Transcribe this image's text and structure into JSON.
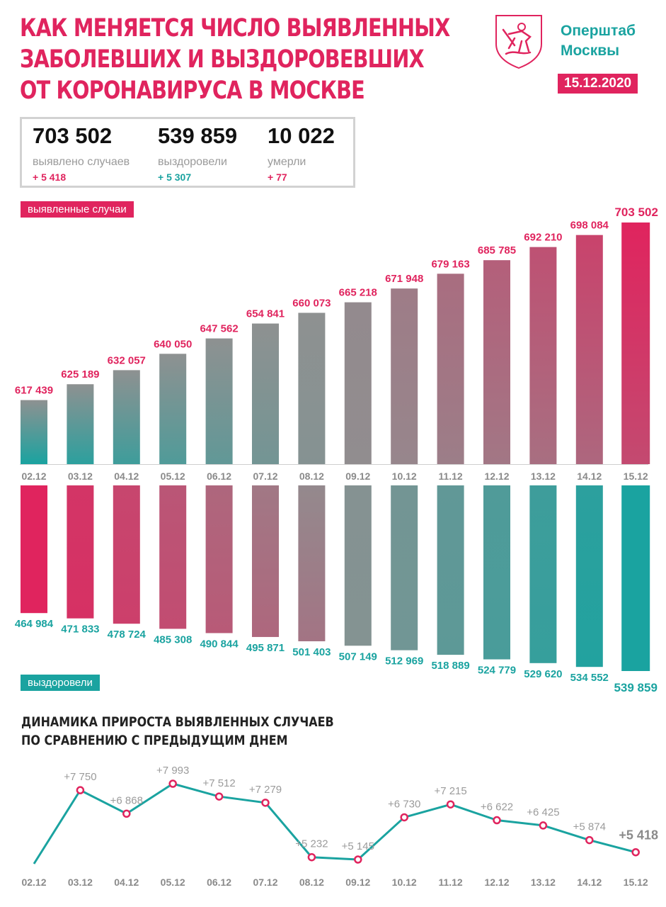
{
  "title": {
    "line1": "КАК МЕНЯЕТСЯ ЧИСЛО ВЫЯВЛЕННЫХ",
    "line2": "ЗАБОЛЕВШИХ И ВЫЗДОРОВЕВШИХ",
    "line3": "ОТ КОРОНАВИРУСА В МОСКВЕ"
  },
  "org": {
    "line1": "Оперштаб",
    "line2": "Москвы"
  },
  "date": "15.12.2020",
  "emblem": {
    "icon": "moscow-coat-of-arms-icon"
  },
  "summary": [
    {
      "value": "703 502",
      "label": "выявлено случаев",
      "delta": "+ 5 418",
      "color": "#e0245e"
    },
    {
      "value": "539 859",
      "label": "выздоровели",
      "delta": "+ 5 307",
      "color": "#1aa3a0"
    },
    {
      "value": "10 022",
      "label": "умерли",
      "delta": "+ 77",
      "color": "#e0245e"
    }
  ],
  "colors": {
    "pink": "#e0245e",
    "teal": "#1aa3a0",
    "gray": "#999999"
  },
  "chart_data": [
    {
      "type": "bar",
      "legend_label": "выявленные случаи",
      "categories": [
        "02.12",
        "03.12",
        "04.12",
        "05.12",
        "06.12",
        "07.12",
        "08.12",
        "09.12",
        "10.12",
        "11.12",
        "12.12",
        "13.12",
        "14.12",
        "15.12"
      ],
      "values": [
        617439,
        625189,
        632057,
        640050,
        647562,
        654841,
        660073,
        665218,
        671948,
        679163,
        685785,
        692210,
        698084,
        703502
      ],
      "value_labels": [
        "617 439",
        "625 189",
        "632 057",
        "640 050",
        "647 562",
        "654 841",
        "660 073",
        "665 218",
        "671 948",
        "679 163",
        "685 785",
        "692 210",
        "698 084",
        "703 502"
      ]
    },
    {
      "type": "bar",
      "legend_label": "выздоровели",
      "categories": [
        "02.12",
        "03.12",
        "04.12",
        "05.12",
        "06.12",
        "07.12",
        "08.12",
        "09.12",
        "10.12",
        "11.12",
        "12.12",
        "13.12",
        "14.12",
        "15.12"
      ],
      "values": [
        464984,
        471833,
        478724,
        485308,
        490844,
        495871,
        501403,
        507149,
        512969,
        518889,
        524779,
        529620,
        534552,
        539859
      ],
      "value_labels": [
        "464 984",
        "471 833",
        "478 724",
        "485 308",
        "490 844",
        "495 871",
        "501 403",
        "507 149",
        "512 969",
        "518 889",
        "524 779",
        "529 620",
        "534 552",
        "539 859"
      ]
    },
    {
      "type": "line",
      "title_line1": "ДИНАМИКА ПРИРОСТА ВЫЯВЛЕННЫХ СЛУЧАЕВ",
      "title_line2": "ПО СРАВНЕНИЮ С ПРЕДЫДУЩИМ ДНЕМ",
      "categories": [
        "02.12",
        "03.12",
        "04.12",
        "05.12",
        "06.12",
        "07.12",
        "08.12",
        "09.12",
        "10.12",
        "11.12",
        "12.12",
        "13.12",
        "14.12",
        "15.12"
      ],
      "values": [
        null,
        7750,
        6868,
        7993,
        7512,
        7279,
        5232,
        5145,
        6730,
        7215,
        6622,
        6425,
        5874,
        5418
      ],
      "value_labels": [
        "",
        "+7 750",
        "+6 868",
        "+7 993",
        "+7 512",
        "+7 279",
        "+5 232",
        "+5 145",
        "+6 730",
        "+7 215",
        "+6 622",
        "+6 425",
        "+5 874",
        "+5 418"
      ]
    }
  ]
}
